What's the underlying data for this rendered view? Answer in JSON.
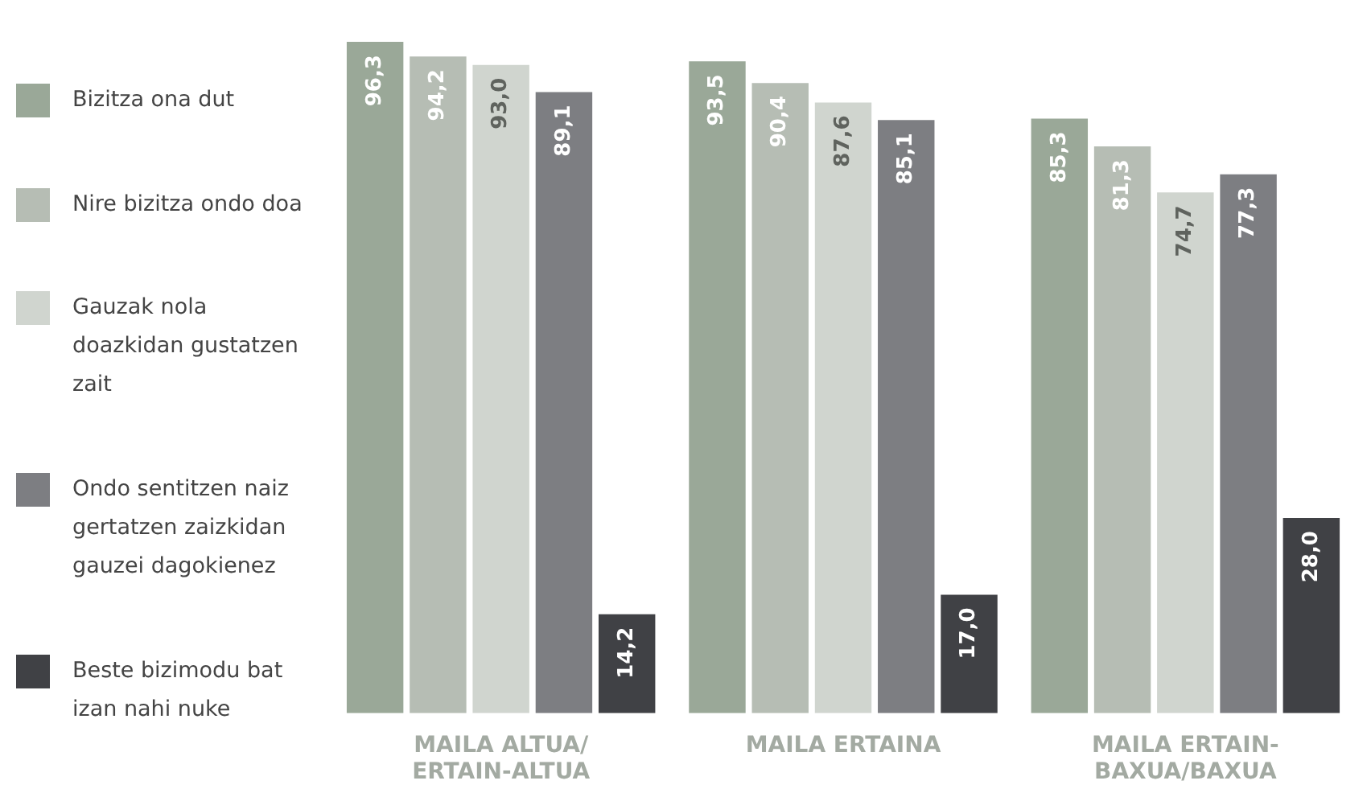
{
  "chart_data": {
    "type": "bar",
    "categories": [
      "MAILA ALTUA/\nERTAIN-ALTUA",
      "MAILA ERTAINA",
      "MAILA ERTAIN-\nBAXUA/BAXUA"
    ],
    "series": [
      {
        "name": "Bizitza ona dut",
        "color": "#9aa898",
        "values": [
          96.3,
          93.5,
          85.3
        ],
        "value_labels": [
          "96,3",
          "93,5",
          "85,3"
        ]
      },
      {
        "name": "Nire bizitza ondo doa",
        "color": "#b6bdb4",
        "values": [
          94.2,
          90.4,
          81.3
        ],
        "value_labels": [
          "94,2",
          "90,4",
          "81,3"
        ]
      },
      {
        "name": "Gauzak nola doazkidan gustatzen zait",
        "color": "#d0d5cf",
        "values": [
          93.0,
          87.6,
          74.7
        ],
        "value_labels": [
          "93,0",
          "87,6",
          "74,7"
        ]
      },
      {
        "name": "Ondo sentitzen naiz gertatzen zaizkidan gauzei dagokienez",
        "color": "#7d7e82",
        "values": [
          89.1,
          85.1,
          77.3
        ],
        "value_labels": [
          "89,1",
          "85,1",
          "77,3"
        ]
      },
      {
        "name": "Beste bizimodu bat izan nahi nuke",
        "color": "#404145",
        "values": [
          14.2,
          17.0,
          28.0
        ],
        "value_labels": [
          "14,2",
          "17,0",
          "28,0"
        ]
      }
    ],
    "legend": "left",
    "grid": false
  }
}
